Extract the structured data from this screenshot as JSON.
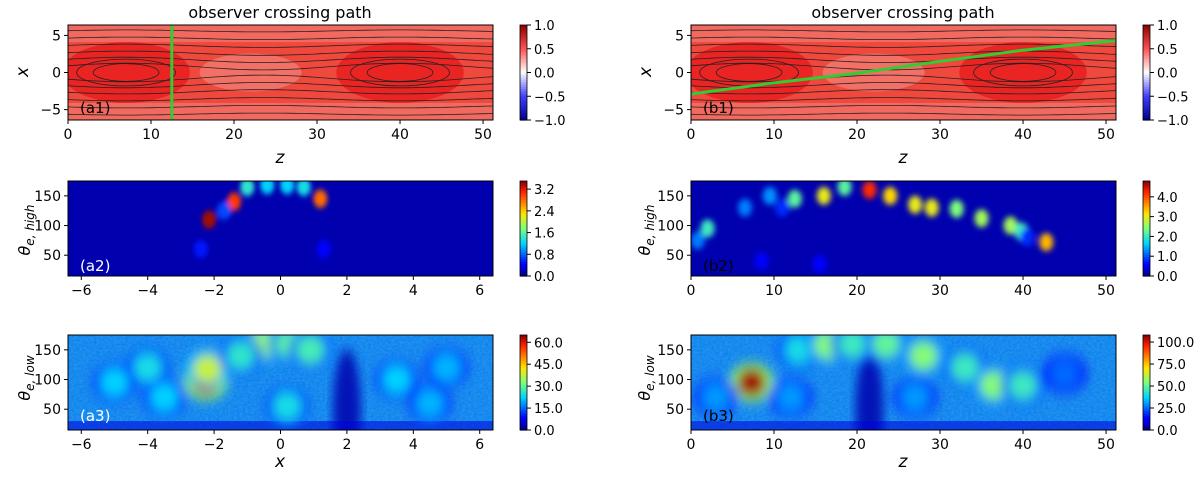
{
  "chart_data": [
    {
      "id": "a1",
      "type": "heatmap",
      "title": "observer crossing path",
      "panel_label": "(a1)",
      "xlabel": "z",
      "ylabel": "x",
      "xlim": [
        0,
        51.2
      ],
      "ylim": [
        -6.4,
        6.4
      ],
      "xticks": [
        0,
        10,
        20,
        30,
        40,
        50
      ],
      "yticks": [
        -5,
        0,
        5
      ],
      "colormap": "bwr",
      "clim": [
        -1.0,
        1.0
      ],
      "colorbar_ticks": [
        "1.0",
        "0.5",
        "0.0",
        "-0.5",
        "-1.0"
      ],
      "colorbar_tick_values": [
        1.0,
        0.5,
        0.0,
        -0.5,
        -1.0
      ],
      "crossing_path": {
        "color": "#33cc33",
        "points": [
          [
            12.5,
            -6.4
          ],
          [
            12.5,
            6.4
          ]
        ]
      }
    },
    {
      "id": "b1",
      "type": "heatmap",
      "title": "observer crossing path",
      "panel_label": "(b1)",
      "xlabel": "z",
      "ylabel": "x",
      "xlim": [
        0,
        51.2
      ],
      "ylim": [
        -6.4,
        6.4
      ],
      "xticks": [
        0,
        10,
        20,
        30,
        40,
        50
      ],
      "yticks": [
        -5,
        0,
        5
      ],
      "colormap": "bwr",
      "clim": [
        -1.0,
        1.0
      ],
      "colorbar_ticks": [
        "1.0",
        "0.5",
        "0.0",
        "-0.5",
        "-1.0"
      ],
      "colorbar_tick_values": [
        1.0,
        0.5,
        0.0,
        -0.5,
        -1.0
      ],
      "crossing_path": {
        "color": "#33cc33",
        "points": [
          [
            0,
            -2.9
          ],
          [
            10,
            -1.4
          ],
          [
            20,
            -0.1
          ],
          [
            30,
            1.5
          ],
          [
            40,
            3.0
          ],
          [
            51.2,
            4.3
          ]
        ]
      }
    },
    {
      "id": "a2",
      "type": "heatmap",
      "panel_label": "(a2)",
      "xlabel": "",
      "ylabel": "θe,high",
      "xlim": [
        -6.4,
        6.4
      ],
      "ylim": [
        15,
        175
      ],
      "xticks": [
        -6,
        -4,
        -2,
        0,
        2,
        4,
        6
      ],
      "yticks": [
        50,
        100,
        150
      ],
      "colormap": "jet",
      "clim": [
        0,
        3.5
      ],
      "colorbar_ticks": [
        "3.2",
        "2.4",
        "1.6",
        "0.8",
        "0.0"
      ],
      "colorbar_tick_values": [
        3.2,
        2.4,
        1.6,
        0.8,
        0.0
      ],
      "hot_spots": [
        {
          "x": -2.15,
          "y": 110,
          "value": 3.4
        },
        {
          "x": -1.4,
          "y": 140,
          "value": 3.0
        },
        {
          "x": -1.0,
          "y": 165,
          "value": 1.4
        },
        {
          "x": -0.4,
          "y": 168,
          "value": 1.2
        },
        {
          "x": 0.2,
          "y": 168,
          "value": 1.2
        },
        {
          "x": 0.7,
          "y": 165,
          "value": 1.3
        },
        {
          "x": 1.2,
          "y": 145,
          "value": 2.8
        },
        {
          "x": -1.7,
          "y": 125,
          "value": 0.7
        },
        {
          "x": -2.4,
          "y": 60,
          "value": 0.5
        },
        {
          "x": 1.3,
          "y": 60,
          "value": 0.4
        }
      ]
    },
    {
      "id": "b2",
      "type": "heatmap",
      "panel_label": "(b2)",
      "xlabel": "",
      "ylabel": "θe,high",
      "xlim": [
        0,
        51.2
      ],
      "ylim": [
        15,
        175
      ],
      "xticks": [
        0,
        10,
        20,
        30,
        40,
        50
      ],
      "yticks": [
        50,
        100,
        150
      ],
      "colormap": "jet",
      "clim": [
        0,
        4.8
      ],
      "colorbar_ticks": [
        "4.0",
        "3.0",
        "2.0",
        "1.0",
        "0.0"
      ],
      "colorbar_tick_values": [
        4.0,
        3.0,
        2.0,
        1.0,
        0.0
      ],
      "hot_spots": [
        {
          "x": 0.8,
          "y": 75,
          "value": 1.2
        },
        {
          "x": 2.0,
          "y": 95,
          "value": 2.0
        },
        {
          "x": 6.5,
          "y": 130,
          "value": 1.2
        },
        {
          "x": 9.5,
          "y": 150,
          "value": 1.3
        },
        {
          "x": 12.5,
          "y": 145,
          "value": 2.2
        },
        {
          "x": 16.0,
          "y": 150,
          "value": 3.0
        },
        {
          "x": 18.5,
          "y": 165,
          "value": 2.2
        },
        {
          "x": 21.5,
          "y": 160,
          "value": 4.2
        },
        {
          "x": 24.0,
          "y": 150,
          "value": 3.2
        },
        {
          "x": 27.0,
          "y": 135,
          "value": 3.0
        },
        {
          "x": 29.0,
          "y": 130,
          "value": 3.0
        },
        {
          "x": 32.0,
          "y": 128,
          "value": 2.4
        },
        {
          "x": 35.0,
          "y": 112,
          "value": 2.6
        },
        {
          "x": 38.5,
          "y": 100,
          "value": 2.6
        },
        {
          "x": 39.8,
          "y": 90,
          "value": 2.0
        },
        {
          "x": 42.8,
          "y": 72,
          "value": 3.4
        },
        {
          "x": 11.0,
          "y": 130,
          "value": 0.8
        },
        {
          "x": 8.5,
          "y": 40,
          "value": 0.6
        },
        {
          "x": 15.5,
          "y": 35,
          "value": 0.6
        },
        {
          "x": 40.5,
          "y": 80,
          "value": 0.8
        }
      ]
    },
    {
      "id": "a3",
      "type": "heatmap",
      "panel_label": "(a3)",
      "xlabel": "x",
      "ylabel": "θe,low",
      "xlim": [
        -6.4,
        6.4
      ],
      "ylim": [
        15,
        175
      ],
      "xticks": [
        -6,
        -4,
        -2,
        0,
        2,
        4,
        6
      ],
      "yticks": [
        50,
        100,
        150
      ],
      "colormap": "jet",
      "clim": [
        0,
        65
      ],
      "colorbar_ticks": [
        "60.0",
        "45.0",
        "30.0",
        "15.0",
        "0.0"
      ],
      "colorbar_tick_values": [
        60.0,
        45.0,
        30.0,
        15.0,
        0.0
      ],
      "hot_spots": [
        {
          "x": -2.25,
          "y": 98,
          "value": 62
        },
        {
          "x": -2.2,
          "y": 118,
          "value": 38
        },
        {
          "x": -0.5,
          "y": 160,
          "value": 34
        },
        {
          "x": 0.3,
          "y": 160,
          "value": 30
        },
        {
          "x": 0.9,
          "y": 150,
          "value": 28
        },
        {
          "x": -1.2,
          "y": 140,
          "value": 26
        },
        {
          "x": -4.0,
          "y": 120,
          "value": 24
        },
        {
          "x": -3.5,
          "y": 70,
          "value": 22
        },
        {
          "x": 3.5,
          "y": 100,
          "value": 22
        },
        {
          "x": 5.0,
          "y": 120,
          "value": 20
        },
        {
          "x": 0.2,
          "y": 55,
          "value": 24
        },
        {
          "x": -5.0,
          "y": 95,
          "value": 22
        },
        {
          "x": 4.5,
          "y": 60,
          "value": 20
        }
      ]
    },
    {
      "id": "b3",
      "type": "heatmap",
      "panel_label": "(b3)",
      "xlabel": "z",
      "ylabel": "θe,low",
      "xlim": [
        0,
        51.2
      ],
      "ylim": [
        15,
        175
      ],
      "xticks": [
        0,
        10,
        20,
        30,
        40,
        50
      ],
      "yticks": [
        50,
        100,
        150
      ],
      "colormap": "jet",
      "clim": [
        0,
        108
      ],
      "colorbar_ticks": [
        "100.0",
        "75.0",
        "50.0",
        "25.0",
        "0.0"
      ],
      "colorbar_tick_values": [
        100.0,
        75.0,
        50.0,
        25.0,
        0.0
      ],
      "hot_spots": [
        {
          "x": 7.3,
          "y": 95,
          "value": 105
        },
        {
          "x": 13.0,
          "y": 150,
          "value": 40
        },
        {
          "x": 16.5,
          "y": 158,
          "value": 55
        },
        {
          "x": 19.5,
          "y": 160,
          "value": 45
        },
        {
          "x": 23.5,
          "y": 160,
          "value": 50
        },
        {
          "x": 28.0,
          "y": 140,
          "value": 55
        },
        {
          "x": 33.0,
          "y": 120,
          "value": 45
        },
        {
          "x": 36.5,
          "y": 90,
          "value": 55
        },
        {
          "x": 40.0,
          "y": 90,
          "value": 45
        },
        {
          "x": 3.0,
          "y": 70,
          "value": 30
        },
        {
          "x": 12.0,
          "y": 70,
          "value": 30
        },
        {
          "x": 27.0,
          "y": 70,
          "value": 30
        },
        {
          "x": 45.0,
          "y": 110,
          "value": 25
        }
      ]
    }
  ]
}
